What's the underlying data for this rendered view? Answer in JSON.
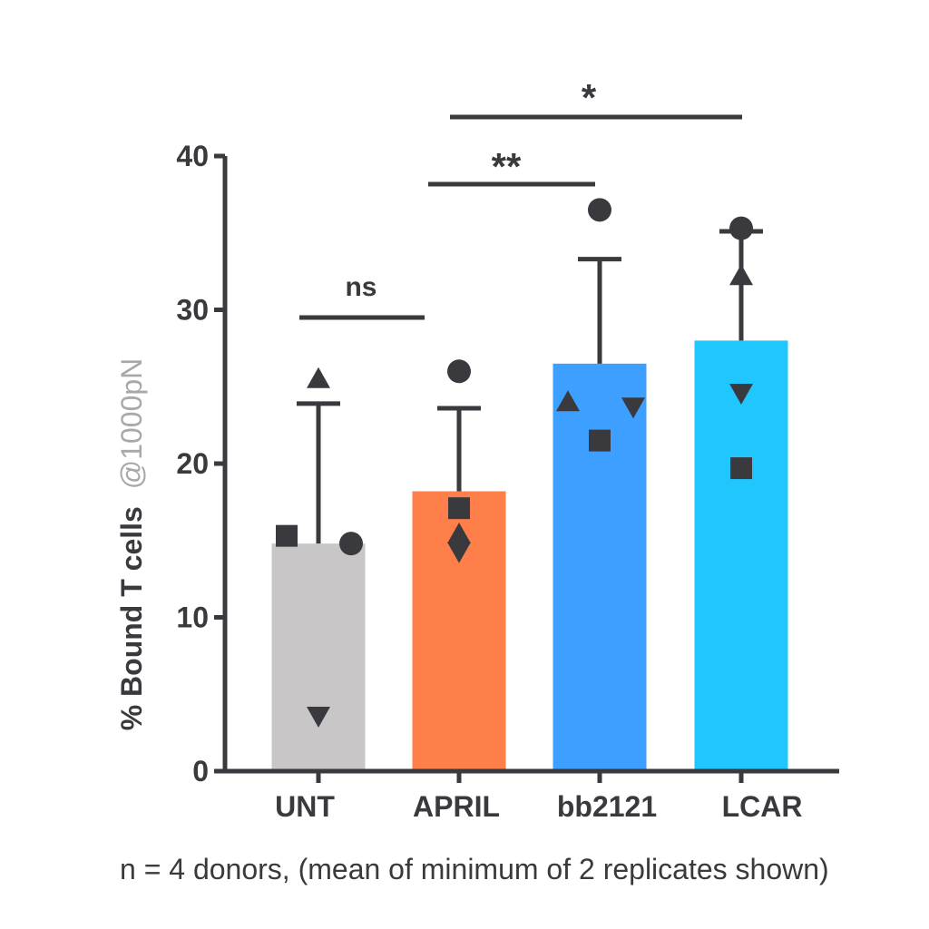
{
  "chart_data": {
    "type": "bar",
    "categories": [
      "UNT",
      "APRIL",
      "bb2121",
      "LCAR"
    ],
    "means": [
      14.8,
      18.2,
      26.5,
      28.0
    ],
    "sd_upper": [
      23.9,
      23.6,
      33.3,
      35.1
    ],
    "bar_colors": [
      "#c9c6c8",
      "#ff7f4a",
      "#3d9fff",
      "#22c6ff"
    ],
    "donor_values": [
      {
        "marker": "circle",
        "values": [
          14.8,
          26.0,
          36.5,
          35.3
        ]
      },
      {
        "marker": "square",
        "values": [
          15.3,
          17.1,
          21.5,
          19.7
        ]
      },
      {
        "marker": "triangle-up",
        "values": [
          25.5,
          15.4,
          24.0,
          32.2
        ]
      },
      {
        "marker": "triangle-down",
        "values": [
          3.6,
          14.3,
          23.7,
          24.6
        ]
      }
    ],
    "ylabel_main": "% Bound T cells",
    "ylabel_sub": "@1000pN",
    "ylim": [
      0,
      40
    ],
    "yticks": [
      "0",
      "10",
      "20",
      "30",
      "40"
    ],
    "significance": [
      {
        "from": "UNT",
        "to": "APRIL",
        "label": "ns"
      },
      {
        "from": "APRIL",
        "to": "bb2121",
        "label": "**"
      },
      {
        "from": "APRIL",
        "to": "LCAR",
        "label": "*"
      }
    ],
    "ink_color": "#3a3a3e",
    "sub_label_color": "#a8a8ac"
  },
  "footnote": "n = 4 donors, (mean of minimum of 2 replicates shown)"
}
